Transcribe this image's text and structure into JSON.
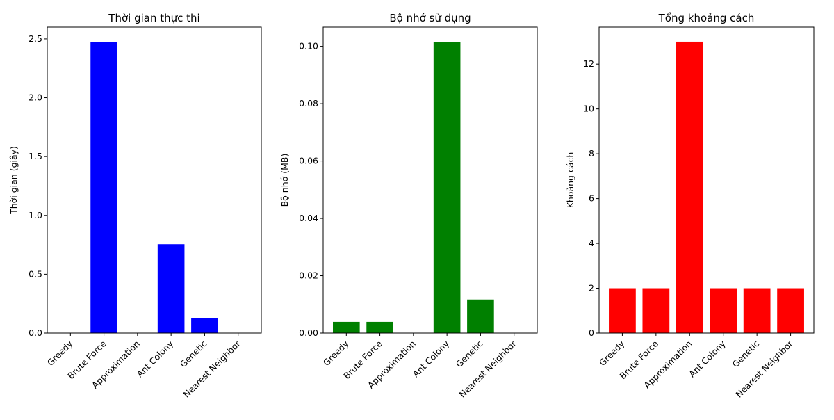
{
  "chart_data": [
    {
      "type": "bar",
      "title": "Thời gian thực thi",
      "xlabel": "",
      "ylabel": "Thời gian (giây)",
      "categories": [
        "Greedy",
        "Brute Force",
        "Approximation",
        "Ant Colony",
        "Genetic",
        "Nearest Neighbor"
      ],
      "values": [
        0.0,
        2.47,
        0.0,
        0.755,
        0.13,
        0.0
      ],
      "ylim": [
        0,
        2.6
      ],
      "yticks": [
        0.0,
        0.5,
        1.0,
        1.5,
        2.0,
        2.5
      ],
      "ytick_labels": [
        "0.0",
        "0.5",
        "1.0",
        "1.5",
        "2.0",
        "2.5"
      ],
      "color": "#0000ff",
      "grid": false
    },
    {
      "type": "bar",
      "title": "Bộ nhớ sử dụng",
      "xlabel": "",
      "ylabel": "Bộ nhớ (MB)",
      "categories": [
        "Greedy",
        "Brute Force",
        "Approximation",
        "Ant Colony",
        "Genetic",
        "Nearest Neighbor"
      ],
      "values": [
        0.0039,
        0.0039,
        0.0,
        0.1016,
        0.0117,
        0.0
      ],
      "ylim": [
        0,
        0.1067
      ],
      "yticks": [
        0.0,
        0.02,
        0.04,
        0.06,
        0.08,
        0.1
      ],
      "ytick_labels": [
        "0.00",
        "0.02",
        "0.04",
        "0.06",
        "0.08",
        "0.10"
      ],
      "color": "#008000",
      "grid": false
    },
    {
      "type": "bar",
      "title": "Tổng khoảng cách",
      "xlabel": "",
      "ylabel": "Khoảng cách",
      "categories": [
        "Greedy",
        "Brute Force",
        "Approximation",
        "Ant Colony",
        "Genetic",
        "Nearest Neighbor"
      ],
      "values": [
        2,
        2,
        13,
        2,
        2,
        2
      ],
      "ylim": [
        0,
        13.65
      ],
      "yticks": [
        0,
        2,
        4,
        6,
        8,
        10,
        12
      ],
      "ytick_labels": [
        "0",
        "2",
        "4",
        "6",
        "8",
        "10",
        "12"
      ],
      "color": "#ff0000",
      "grid": false
    }
  ]
}
